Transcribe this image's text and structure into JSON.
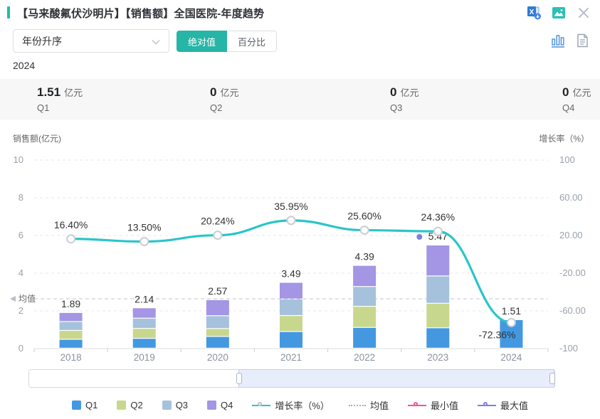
{
  "header": {
    "title": "【马来酸氟伏沙明片】【销售额】全国医院-年度趋势",
    "icons": [
      "excel-export-icon",
      "image-export-icon",
      "close-icon"
    ]
  },
  "controls": {
    "sort_dropdown_value": "年份升序",
    "mode_absolute": "绝对值",
    "mode_percent": "百分比",
    "active_mode": "绝对值"
  },
  "summary": {
    "year": "2024",
    "items": [
      {
        "value": "1.51",
        "unit": "亿元",
        "label": "Q1"
      },
      {
        "value": "0",
        "unit": "亿元",
        "label": "Q2"
      },
      {
        "value": "0",
        "unit": "亿元",
        "label": "Q3"
      },
      {
        "value": "0",
        "unit": "亿元",
        "label": "Q4"
      }
    ]
  },
  "chart_data": {
    "type": "bar",
    "subtype": "stacked-bars-with-growth-line",
    "categories": [
      "2018",
      "2019",
      "2020",
      "2021",
      "2022",
      "2023",
      "2024"
    ],
    "series": [
      {
        "name": "Q1",
        "type": "bar",
        "color": "#4498E0",
        "values": [
          0.47,
          0.52,
          0.62,
          0.88,
          1.1,
          1.08,
          1.51
        ]
      },
      {
        "name": "Q2",
        "type": "bar",
        "color": "#C8D78E",
        "values": [
          0.47,
          0.53,
          0.42,
          0.85,
          1.12,
          1.3,
          0
        ]
      },
      {
        "name": "Q3",
        "type": "bar",
        "color": "#A6C1DC",
        "values": [
          0.47,
          0.54,
          0.68,
          0.88,
          1.05,
          1.45,
          0
        ]
      },
      {
        "name": "Q4",
        "type": "bar",
        "color": "#A495E5",
        "values": [
          0.48,
          0.55,
          0.85,
          0.88,
          1.12,
          1.64,
          0
        ]
      },
      {
        "name": "增长率（%）",
        "type": "line",
        "color": "#2BC5C8",
        "values": [
          16.4,
          13.5,
          20.24,
          35.95,
          25.6,
          24.36,
          -72.36
        ]
      }
    ],
    "bar_total_labels": [
      "1.89",
      "2.14",
      "2.57",
      "3.49",
      "4.39",
      "5.47",
      "1.51"
    ],
    "growth_labels": [
      "16.40%",
      "13.50%",
      "20.24%",
      "35.95%",
      "25.60%",
      "24.36%",
      "-72.36%"
    ],
    "left_axis": {
      "title": "销售额(亿元)",
      "ticks": [
        "10",
        "8",
        "6",
        "4",
        "2",
        "0"
      ],
      "min": 0,
      "max": 10
    },
    "right_axis": {
      "title": "增长率（%）",
      "ticks": [
        "100",
        "60.00",
        "20.00",
        "-20.00",
        "-60.00",
        "-100"
      ],
      "min": -100,
      "max": 100
    },
    "mean_line": {
      "label": "均值",
      "value_estimate": 2.64
    },
    "max_marker": {
      "category": "2023",
      "value_label": "5.47",
      "color": "#7B80E3"
    },
    "grid": "dashed-horizontal",
    "legend_position": "bottom"
  },
  "legend": {
    "items": [
      {
        "label": "Q1",
        "swatch": "square",
        "color": "#4498E0"
      },
      {
        "label": "Q2",
        "swatch": "square",
        "color": "#C8D78E"
      },
      {
        "label": "Q3",
        "swatch": "square",
        "color": "#A6C1DC"
      },
      {
        "label": "Q4",
        "swatch": "square",
        "color": "#A495E5"
      },
      {
        "label": "增长率（%）",
        "swatch": "line-circle",
        "color": "#2BC5C8",
        "circle_color": "#C0C4CA"
      },
      {
        "label": "均值",
        "swatch": "dashed-line",
        "color": "#A9AEB8"
      },
      {
        "label": "最小值",
        "swatch": "line-circle",
        "color": "#F1529B",
        "circle_color": "#F1529B"
      },
      {
        "label": "最大值",
        "swatch": "line-circle",
        "color": "#7B80E3",
        "circle_color": "#7B80E3"
      }
    ]
  },
  "colors": {
    "accent_teal": "#1FBDB1",
    "active_button_bg": "#26B5A6",
    "line_teal": "#2BC5C8",
    "summary_bg": "#F7F7F7",
    "gridline": "#E3E7ED",
    "axis_text": "#9AA1AB"
  }
}
